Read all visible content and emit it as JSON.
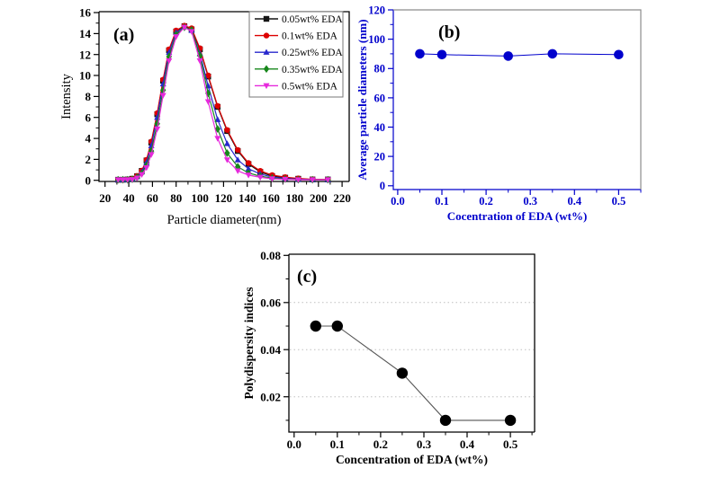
{
  "figure": {
    "background": "#ffffff",
    "panel_labels": [
      "(a)",
      "(b)",
      "(c)"
    ]
  },
  "chart_data": [
    {
      "id": "a",
      "type": "line",
      "panel_label": "(a)",
      "xlabel": "Particle diameter(nm)",
      "ylabel": "Intensity",
      "xlim": [
        14.9,
        226
      ],
      "ylim": [
        -0.11,
        16.09
      ],
      "xticks": [
        [
          20,
          "20"
        ],
        [
          40,
          "40"
        ],
        [
          60,
          "60"
        ],
        [
          80,
          "80"
        ],
        [
          100,
          "100"
        ],
        [
          120,
          "120"
        ],
        [
          140,
          "140"
        ],
        [
          160,
          "160"
        ],
        [
          180,
          "180"
        ],
        [
          200,
          "200"
        ],
        [
          220,
          "220"
        ]
      ],
      "yticks": [
        [
          0,
          "0"
        ],
        [
          2,
          "2"
        ],
        [
          4,
          "4"
        ],
        [
          6,
          "6"
        ],
        [
          8,
          "8"
        ],
        [
          10,
          "10"
        ],
        [
          12,
          "12"
        ],
        [
          14,
          "14"
        ],
        [
          16,
          "16"
        ]
      ],
      "x_minor_step": 10,
      "y_minor_step": 1,
      "axis_color": "#000000",
      "legend": {
        "border": true,
        "position": "top-right"
      },
      "x": [
        31,
        35,
        39,
        43,
        47,
        51,
        55,
        59,
        64,
        69,
        74,
        80,
        87,
        93,
        100,
        107,
        115,
        123,
        132,
        141,
        151,
        161,
        172,
        183,
        195,
        208
      ],
      "series": [
        {
          "name": "0.05wt% EDA",
          "color": "#141414",
          "marker": "square",
          "values": [
            0.05,
            0.05,
            0.08,
            0.15,
            0.4,
            0.9,
            1.9,
            3.6,
            6.3,
            9.5,
            12.4,
            14.2,
            14.7,
            14.4,
            12.5,
            9.9,
            7.0,
            4.7,
            2.8,
            1.55,
            0.8,
            0.4,
            0.25,
            0.15,
            0.08,
            0.08
          ]
        },
        {
          "name": "0.1wt% EDA",
          "color": "#dd0000",
          "marker": "circle",
          "values": [
            0.05,
            0.05,
            0.08,
            0.15,
            0.42,
            0.92,
            1.95,
            3.7,
            6.4,
            9.6,
            12.5,
            14.3,
            14.75,
            14.5,
            12.6,
            10.0,
            7.1,
            4.8,
            2.9,
            1.65,
            0.9,
            0.5,
            0.3,
            0.18,
            0.1,
            0.08
          ]
        },
        {
          "name": "0.25wt% EDA",
          "color": "#2727cc",
          "marker": "triangle-up",
          "values": [
            0.05,
            0.05,
            0.07,
            0.12,
            0.35,
            0.8,
            1.7,
            3.3,
            6.0,
            9.2,
            12.2,
            14.1,
            14.65,
            14.3,
            12.1,
            9.0,
            5.8,
            3.5,
            1.95,
            1.1,
            0.6,
            0.3,
            0.18,
            0.1,
            0.06,
            0.05
          ]
        },
        {
          "name": "0.35wt% EDA",
          "color": "#17871b",
          "marker": "diamond",
          "values": [
            0.05,
            0.05,
            0.05,
            0.1,
            0.28,
            0.65,
            1.4,
            2.8,
            5.4,
            8.6,
            11.8,
            13.9,
            14.6,
            14.35,
            11.9,
            8.3,
            4.9,
            2.6,
            1.3,
            0.7,
            0.4,
            0.22,
            0.12,
            0.06,
            0.05,
            0.05
          ]
        },
        {
          "name": "0.5wt% EDA",
          "color": "#e629dc",
          "marker": "triangle-down",
          "values": [
            0.05,
            0.05,
            0.05,
            0.08,
            0.22,
            0.55,
            1.2,
            2.45,
            4.9,
            8.1,
            11.4,
            13.7,
            14.6,
            14.2,
            11.4,
            7.5,
            4.0,
            1.95,
            0.9,
            0.5,
            0.28,
            0.15,
            0.1,
            0.05,
            0.05,
            0.05
          ]
        }
      ]
    },
    {
      "id": "b",
      "type": "line",
      "panel_label": "(b)",
      "xlabel": "Cocentration of EDA (wt%)",
      "ylabel": "Average particle diameters (nm)",
      "xlim": [
        -0.01,
        0.55
      ],
      "ylim": [
        -2.6,
        120
      ],
      "xticks": [
        [
          0.0,
          "0.0"
        ],
        [
          0.1,
          "0.1"
        ],
        [
          0.2,
          "0.2"
        ],
        [
          0.3,
          "0.3"
        ],
        [
          0.4,
          "0.4"
        ],
        [
          0.5,
          "0.5"
        ]
      ],
      "yticks": [
        [
          0,
          "0"
        ],
        [
          20,
          "20"
        ],
        [
          40,
          "40"
        ],
        [
          60,
          "60"
        ],
        [
          80,
          "80"
        ],
        [
          100,
          "100"
        ],
        [
          120,
          "120"
        ]
      ],
      "x_minor_step": 0.05,
      "y_minor_step": 10,
      "axis_color": "#0000cc",
      "frame_color": "#8c8c8c",
      "series": [
        {
          "name": "Average particle diameter",
          "color": "#0000cc",
          "marker": "circle",
          "x": [
            0.05,
            0.1,
            0.25,
            0.35,
            0.5
          ],
          "values": [
            90,
            89.5,
            88.5,
            90,
            89.5
          ]
        }
      ]
    },
    {
      "id": "c",
      "type": "line",
      "panel_label": "(c)",
      "xlabel": "Concentration of EDA (wt%)",
      "ylabel": "Polydispersity indices",
      "xlim": [
        -0.012,
        0.556
      ],
      "ylim": [
        0.005,
        0.0805
      ],
      "xticks": [
        [
          0.0,
          "0.0"
        ],
        [
          0.1,
          "0.1"
        ],
        [
          0.2,
          "0.2"
        ],
        [
          0.3,
          "0.3"
        ],
        [
          0.4,
          "0.4"
        ],
        [
          0.5,
          "0.5"
        ]
      ],
      "yticks": [
        [
          0.02,
          "0.02"
        ],
        [
          0.04,
          "0.04"
        ],
        [
          0.06,
          "0.06"
        ],
        [
          0.08,
          "0.08"
        ]
      ],
      "x_minor_step": 0.05,
      "y_minor_step": 0.01,
      "axis_color": "#000000",
      "grid_y": [
        0.02,
        0.04,
        0.06
      ],
      "grid_color": "#bfbfbf",
      "series": [
        {
          "name": "Polydispersity index",
          "color": "#000000",
          "line_color": "#555555",
          "marker": "circle",
          "x": [
            0.05,
            0.1,
            0.25,
            0.35,
            0.5
          ],
          "values": [
            0.05,
            0.05,
            0.03,
            0.01,
            0.01
          ]
        }
      ]
    }
  ]
}
